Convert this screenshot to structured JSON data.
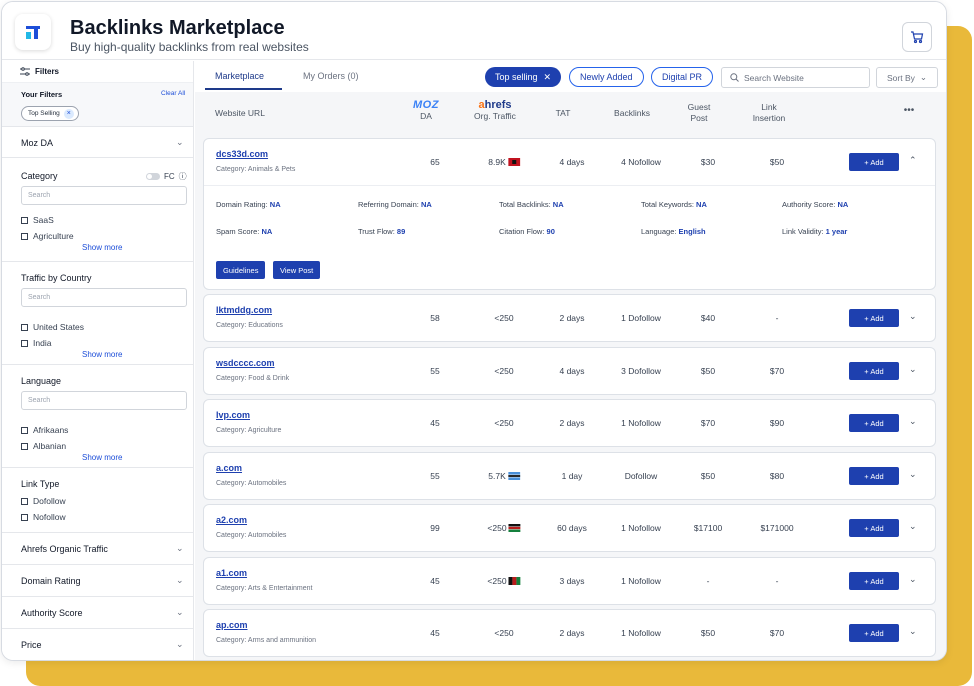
{
  "header": {
    "title": "Backlinks Marketplace",
    "subtitle": "Buy high-quality backlinks from real websites",
    "logo_icon": "logo-icon",
    "cart_icon": "cart-icon"
  },
  "sidebar": {
    "filters_label": "Filters",
    "your_filters_label": "Your Filters",
    "clear_all_label": "Clear All",
    "active_chip": "Top Selling",
    "moz_da": "Moz DA",
    "category": {
      "label": "Category",
      "toggle_label": "FC",
      "search_placeholder": "Search",
      "items": [
        "SaaS",
        "Agriculture"
      ],
      "show_more": "Show more"
    },
    "traffic_by_country": {
      "label": "Traffic by Country",
      "search_placeholder": "Search",
      "items": [
        "United States",
        "India"
      ],
      "show_more": "Show more"
    },
    "language": {
      "label": "Language",
      "search_placeholder": "Search",
      "items": [
        "Afrikaans",
        "Albanian"
      ],
      "show_more": "Show more"
    },
    "link_type": {
      "label": "Link Type",
      "items": [
        "Dofollow",
        "Nofollow"
      ]
    },
    "collapsed_sections": [
      "Ahrefs Organic Traffic",
      "Domain Rating",
      "Authority Score",
      "Price"
    ]
  },
  "tabs": {
    "marketplace": "Marketplace",
    "my_orders": "My Orders (0)"
  },
  "pills": {
    "top_selling": "Top selling",
    "newly_added": "Newly Added",
    "digital_pr": "Digital PR"
  },
  "search": {
    "placeholder": "Search Website"
  },
  "sort_by": "Sort By",
  "columns": {
    "website_url": "Website URL",
    "moz_logo": "MOZ",
    "da": "DA",
    "ahrefs_logo_a": "a",
    "ahrefs_logo_rest": "hrefs",
    "org_traffic": "Org. Traffic",
    "tat": "TAT",
    "backlinks": "Backlinks",
    "guest_post_1": "Guest",
    "guest_post_2": "Post",
    "link_insertion_1": "Link",
    "link_insertion_2": "Insertion",
    "more": "•••"
  },
  "expanded_details": {
    "domain_rating": {
      "label": "Domain Rating:",
      "value": "NA"
    },
    "referring_domain": {
      "label": "Referring Domain:",
      "value": "NA"
    },
    "total_backlinks": {
      "label": "Total Backlinks:",
      "value": "NA"
    },
    "total_keywords": {
      "label": "Total Keywords:",
      "value": "NA"
    },
    "authority_score": {
      "label": "Authority Score:",
      "value": "NA"
    },
    "spam_score": {
      "label": "Spam Score:",
      "value": "NA"
    },
    "trust_flow": {
      "label": "Trust Flow:",
      "value": "89"
    },
    "citation_flow": {
      "label": "Citation Flow:",
      "value": "90"
    },
    "language": {
      "label": "Language:",
      "value": "English"
    },
    "link_validity": {
      "label": "Link Validity:",
      "value": "1 year"
    },
    "guidelines_btn": "Guidelines",
    "view_post_btn": "View Post"
  },
  "add_label": "+ Add",
  "rows": [
    {
      "domain": "dcs33d.com",
      "category": "Category: Animals & Pets",
      "da": "65",
      "traffic": "8.9K",
      "flag": "red",
      "tat": "4 days",
      "backlinks": "4 Nofollow",
      "guest": "$30",
      "insertion": "$50"
    },
    {
      "domain": "lktmddg.com",
      "category": "Category: Educations",
      "da": "58",
      "traffic": "<250",
      "flag": "",
      "tat": "2 days",
      "backlinks": "1 Dofollow",
      "guest": "$40",
      "insertion": "-"
    },
    {
      "domain": "wsdcccc.com",
      "category": "Category: Food & Drink",
      "da": "55",
      "traffic": "<250",
      "flag": "",
      "tat": "4 days",
      "backlinks": "3 Dofollow",
      "guest": "$50",
      "insertion": "$70"
    },
    {
      "domain": "lvp.com",
      "category": "Category: Agriculture",
      "da": "45",
      "traffic": "<250",
      "flag": "",
      "tat": "2 days",
      "backlinks": "1 Nofollow",
      "guest": "$70",
      "insertion": "$90"
    },
    {
      "domain": "a.com",
      "category": "Category: Automobiles",
      "da": "55",
      "traffic": "5.7K",
      "flag": "blue",
      "tat": "1 day",
      "backlinks": "Dofollow",
      "guest": "$50",
      "insertion": "$80"
    },
    {
      "domain": "a2.com",
      "category": "Category: Automobiles",
      "da": "99",
      "traffic": "<250",
      "flag": "kenya",
      "tat": "60 days",
      "backlinks": "1 Nofollow",
      "guest": "$17100",
      "insertion": "$171000"
    },
    {
      "domain": "a1.com",
      "category": "Category: Arts & Entertainment",
      "da": "45",
      "traffic": "<250",
      "flag": "afghan",
      "tat": "3 days",
      "backlinks": "1 Nofollow",
      "guest": "-",
      "insertion": "-"
    },
    {
      "domain": "ap.com",
      "category": "Category: Arms and ammunition",
      "da": "45",
      "traffic": "<250",
      "flag": "",
      "tat": "2 days",
      "backlinks": "1 Nofollow",
      "guest": "$50",
      "insertion": "$70"
    }
  ],
  "colors": {
    "accent": "#1e40af",
    "frame_yellow": "#e9b93a"
  }
}
